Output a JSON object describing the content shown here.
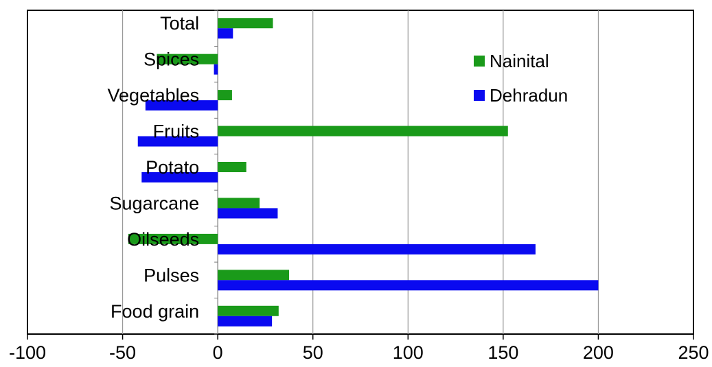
{
  "chart_data": {
    "type": "bar",
    "orientation": "horizontal",
    "categories": [
      "Food grain",
      "Pulses",
      "Oilseeds",
      "Sugarcane",
      "Potato",
      "Fruits",
      "Vegetables",
      "Spices",
      "Total"
    ],
    "series": [
      {
        "name": "Nainital",
        "color": "#1a9a1a",
        "values": [
          32,
          37.5,
          -47,
          22,
          15,
          152.5,
          7.5,
          -32,
          29
        ]
      },
      {
        "name": "Dehradun",
        "color": "#0a0af0",
        "values": [
          28.5,
          200,
          167,
          31.5,
          -40,
          -42,
          -38,
          -2,
          8
        ]
      }
    ],
    "xlim": [
      -100,
      250
    ],
    "xticks": [
      "-100",
      "-50",
      "0",
      "50",
      "100",
      "150",
      "200",
      "250"
    ],
    "grid": true,
    "legend": "upper-right, inside plot",
    "title": "",
    "xlabel": "",
    "ylabel": ""
  }
}
